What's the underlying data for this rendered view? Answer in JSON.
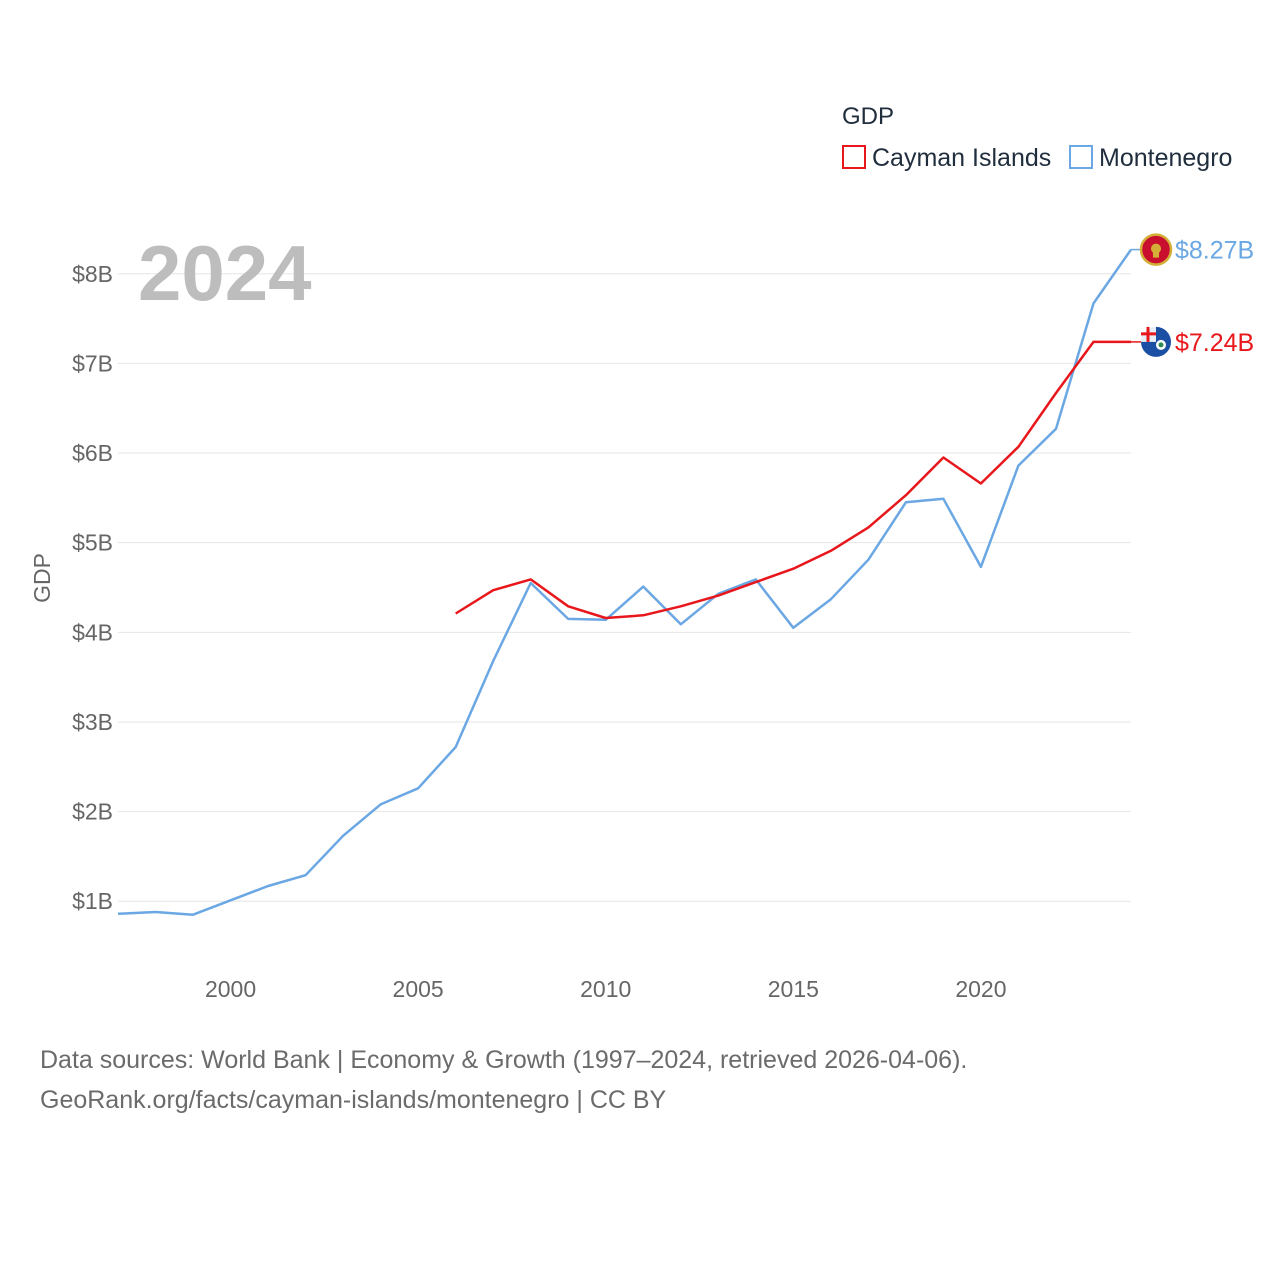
{
  "chart_data": {
    "type": "line",
    "year_label": "2024",
    "ylabel": "GDP",
    "xlim": [
      1997,
      2024
    ],
    "ylim": [
      0.4,
      8.6
    ],
    "x_ticks": [
      2000,
      2005,
      2010,
      2015,
      2020
    ],
    "x_tick_labels": [
      "2000",
      "2005",
      "2010",
      "2015",
      "2020"
    ],
    "y_ticks": [
      1,
      2,
      3,
      4,
      5,
      6,
      7,
      8
    ],
    "y_tick_labels": [
      "$1B",
      "$2B",
      "$3B",
      "$4B",
      "$5B",
      "$6B",
      "$7B",
      "$8B"
    ],
    "legend": {
      "title": "GDP",
      "position": "top-right"
    },
    "series": [
      {
        "name": "Cayman Islands",
        "color": "#e8171b",
        "flag_icon": "cayman-islands-flag-icon",
        "end_label": "$7.24B",
        "x": [
          2006,
          2007,
          2008,
          2009,
          2010,
          2011,
          2012,
          2013,
          2014,
          2015,
          2016,
          2017,
          2018,
          2019,
          2020,
          2021,
          2022,
          2023,
          2024
        ],
        "values": [
          4.21,
          4.47,
          4.59,
          4.29,
          4.16,
          4.19,
          4.29,
          4.41,
          4.56,
          4.71,
          4.91,
          5.17,
          5.53,
          5.95,
          5.66,
          6.07,
          6.67,
          7.24,
          7.24
        ]
      },
      {
        "name": "Montenegro",
        "color": "#6aa7e3",
        "flag_icon": "montenegro-flag-icon",
        "end_label": "$8.27B",
        "x": [
          1997,
          1998,
          1999,
          2000,
          2001,
          2002,
          2003,
          2004,
          2005,
          2006,
          2007,
          2008,
          2009,
          2010,
          2011,
          2012,
          2013,
          2014,
          2015,
          2016,
          2017,
          2018,
          2019,
          2020,
          2021,
          2022,
          2023,
          2024
        ],
        "values": [
          0.86,
          0.88,
          0.85,
          1.01,
          1.17,
          1.29,
          1.73,
          2.08,
          2.26,
          2.72,
          3.68,
          4.55,
          4.15,
          4.14,
          4.51,
          4.09,
          4.43,
          4.59,
          4.05,
          4.37,
          4.81,
          5.45,
          5.49,
          4.73,
          5.86,
          6.27,
          7.67,
          8.27
        ]
      }
    ]
  },
  "footer": {
    "line1": "Data sources: World Bank | Economy & Growth (1997–2024, retrieved 2026-04-06).",
    "line2": "GeoRank.org/facts/cayman-islands/montenegro | CC BY"
  }
}
